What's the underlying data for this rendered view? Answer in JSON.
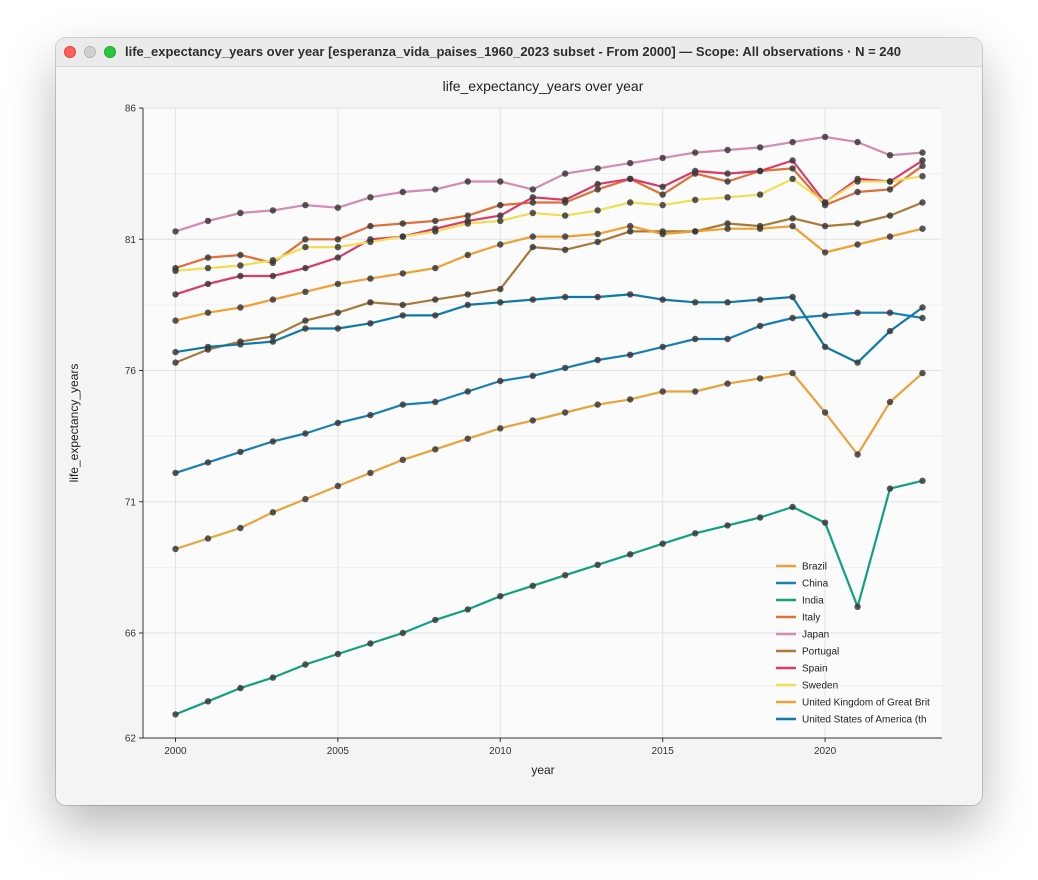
{
  "window": {
    "title": "life_expectancy_years over year [esperanza_vida_paises_1960_2023 subset - From 2000] — Scope: All observations · N = 240"
  },
  "chart_data": {
    "type": "line",
    "title": "life_expectancy_years over year",
    "xlabel": "year",
    "ylabel": "life_expectancy_years",
    "xlim": [
      1999,
      2023.6
    ],
    "ylim": [
      62,
      86
    ],
    "xticks": [
      2000,
      2005,
      2010,
      2015,
      2020
    ],
    "yticks": [
      62,
      66,
      71,
      76,
      81,
      86
    ],
    "grid": true,
    "legend": "bottom-right",
    "x": [
      2000,
      2001,
      2002,
      2003,
      2004,
      2005,
      2006,
      2007,
      2008,
      2009,
      2010,
      2011,
      2012,
      2013,
      2014,
      2015,
      2016,
      2017,
      2018,
      2019,
      2020,
      2021,
      2022,
      2023
    ],
    "series": [
      {
        "name": "Brazil",
        "color": "#e8a33a",
        "values": [
          69.2,
          69.6,
          70.0,
          70.6,
          71.1,
          71.6,
          72.1,
          72.6,
          73.0,
          73.4,
          73.8,
          74.1,
          74.4,
          74.7,
          74.9,
          75.2,
          75.2,
          75.5,
          75.7,
          75.9,
          74.4,
          72.8,
          74.8,
          75.9
        ]
      },
      {
        "name": "China",
        "color": "#1a7fb3",
        "values": [
          72.1,
          72.5,
          72.9,
          73.3,
          73.6,
          74.0,
          74.3,
          74.7,
          74.8,
          75.2,
          75.6,
          75.8,
          76.1,
          76.4,
          76.6,
          76.9,
          77.2,
          77.2,
          77.7,
          78.0,
          78.1,
          78.2,
          78.2,
          78.0
        ]
      },
      {
        "name": "India",
        "color": "#12a07e",
        "values": [
          62.9,
          63.4,
          63.9,
          64.3,
          64.8,
          65.2,
          65.6,
          66.0,
          66.5,
          66.9,
          67.4,
          67.8,
          68.2,
          68.6,
          69.0,
          69.4,
          69.8,
          70.1,
          70.4,
          70.8,
          70.2,
          67.0,
          71.5,
          71.8
        ]
      },
      {
        "name": "Italy",
        "color": "#e0703a",
        "values": [
          79.9,
          80.3,
          80.4,
          80.1,
          81.0,
          81.0,
          81.5,
          81.6,
          81.7,
          81.9,
          82.3,
          82.4,
          82.4,
          82.9,
          83.3,
          82.7,
          83.5,
          83.2,
          83.6,
          83.7,
          82.3,
          82.8,
          82.9,
          83.8
        ]
      },
      {
        "name": "Japan",
        "color": "#d48ab2",
        "values": [
          81.3,
          81.7,
          82.0,
          82.1,
          82.3,
          82.2,
          82.6,
          82.8,
          82.9,
          83.2,
          83.2,
          82.9,
          83.5,
          83.7,
          83.9,
          84.1,
          84.3,
          84.4,
          84.5,
          84.7,
          84.9,
          84.7,
          84.2,
          84.3
        ]
      },
      {
        "name": "Portugal",
        "color": "#a8793a",
        "values": [
          76.3,
          76.8,
          77.1,
          77.3,
          77.9,
          78.2,
          78.6,
          78.5,
          78.7,
          78.9,
          79.1,
          80.7,
          80.6,
          80.9,
          81.3,
          81.3,
          81.3,
          81.6,
          81.5,
          81.8,
          81.5,
          81.6,
          81.9,
          82.4
        ]
      },
      {
        "name": "Spain",
        "color": "#d93b6a",
        "values": [
          78.9,
          79.3,
          79.6,
          79.6,
          79.9,
          80.3,
          81.0,
          81.1,
          81.4,
          81.7,
          81.9,
          82.6,
          82.5,
          83.1,
          83.3,
          83.0,
          83.6,
          83.5,
          83.6,
          84.0,
          82.4,
          83.3,
          83.2,
          84.0
        ]
      },
      {
        "name": "Sweden",
        "color": "#f0de55",
        "values": [
          79.8,
          79.9,
          80.0,
          80.2,
          80.7,
          80.7,
          80.9,
          81.1,
          81.3,
          81.6,
          81.7,
          82.0,
          81.9,
          82.1,
          82.4,
          82.3,
          82.5,
          82.6,
          82.7,
          83.3,
          82.4,
          83.2,
          83.2,
          83.4
        ]
      },
      {
        "name": "United Kingdom of Great Brit",
        "color": "#f0a030",
        "values": [
          77.9,
          78.2,
          78.4,
          78.7,
          79.0,
          79.3,
          79.5,
          79.7,
          79.9,
          80.4,
          80.8,
          81.1,
          81.1,
          81.2,
          81.5,
          81.2,
          81.3,
          81.4,
          81.4,
          81.5,
          80.5,
          80.8,
          81.1,
          81.4
        ]
      },
      {
        "name": "United States of America (th",
        "color": "#0e7aa8",
        "values": [
          76.7,
          76.9,
          77.0,
          77.1,
          77.6,
          77.6,
          77.8,
          78.1,
          78.1,
          78.5,
          78.6,
          78.7,
          78.8,
          78.8,
          78.9,
          78.7,
          78.6,
          78.6,
          78.7,
          78.8,
          76.9,
          76.3,
          77.5,
          78.4
        ]
      }
    ]
  }
}
